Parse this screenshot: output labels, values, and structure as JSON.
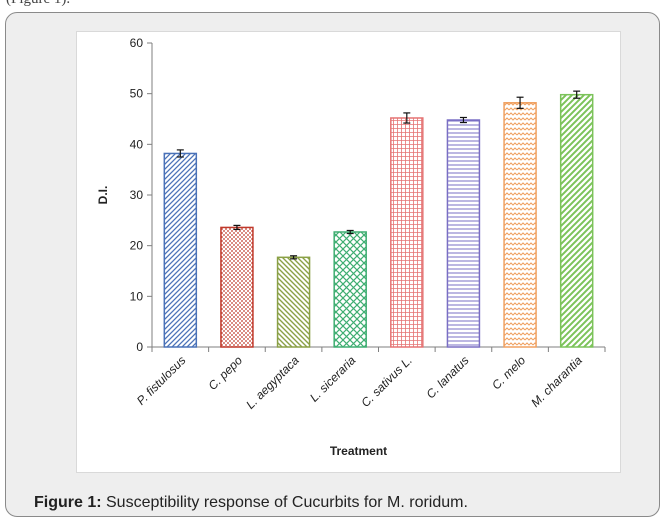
{
  "page": {
    "top_fragment": "(Figure 1).",
    "caption_label": "Figure 1:",
    "caption_text": " Susceptibility response of Cucurbits for M. roridum."
  },
  "chart_data": {
    "type": "bar",
    "xlabel": "Treatment",
    "ylabel": "D.I.",
    "ylim": [
      0,
      60
    ],
    "yticks": [
      0,
      10,
      20,
      30,
      40,
      50,
      60
    ],
    "grid": false,
    "categories": [
      "P. fistulosus",
      "C. pepo",
      "L. aegyptaca",
      "L. siceraria",
      "C. sativus L.",
      "C. lanatus",
      "C. melo",
      "M. charantia"
    ],
    "values": [
      38.2,
      23.6,
      17.7,
      22.7,
      45.2,
      44.8,
      48.2,
      49.8
    ],
    "errors": [
      0.7,
      0.4,
      0.3,
      0.3,
      1.0,
      0.5,
      1.1,
      0.7
    ],
    "bar_colors": [
      "#4a72b8",
      "#c0392b",
      "#8aa046",
      "#3fae72",
      "#e57373",
      "#7a6fc4",
      "#f0a060",
      "#7cc35a"
    ],
    "bar_patterns": [
      "diagonal-right",
      "dots",
      "diagonal-left",
      "crosshatch",
      "grid",
      "horizontal",
      "zigzag",
      "diagonal-wide"
    ]
  }
}
